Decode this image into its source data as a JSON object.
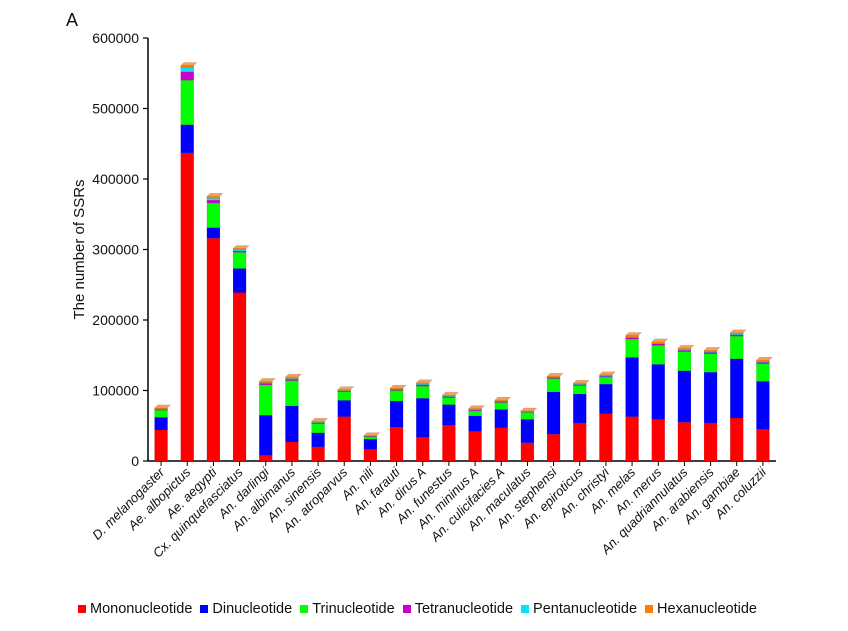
{
  "panel_label": "A",
  "chart_data": {
    "type": "bar",
    "stacked": true,
    "ylabel": "The number of SSRs",
    "xlabel": "",
    "ylim": [
      0,
      600000
    ],
    "yticks": [
      0,
      100000,
      200000,
      300000,
      400000,
      500000,
      600000
    ],
    "grid": false,
    "legend_position": "bottom",
    "categories": [
      "D. melanogaster",
      "Ae. albopictus",
      "Ae. aegypti",
      "Cx. quinquefasciatus",
      "An. darlingi",
      "An. albimanus",
      "An. sinensis",
      "An. atroparvus",
      "An. nili",
      "An. farauti",
      "An. dirus A",
      "An. funestus",
      "An. mininus A",
      "An. culicifacies A",
      "An. maculatus",
      "An. stephensi",
      "An. epiroticus",
      "An. christyi",
      "An. melas",
      "An. merus",
      "An. quadriannulatus",
      "An. arabiensis",
      "An. gambiae",
      "An. coluzzii"
    ],
    "series": [
      {
        "name": "Mononucleotide",
        "color": "#ff0000",
        "values": [
          44000,
          437000,
          316000,
          239000,
          8000,
          27000,
          20000,
          63000,
          17000,
          48000,
          34000,
          51000,
          42000,
          47000,
          26000,
          38000,
          54000,
          67000,
          63000,
          59000,
          55000,
          54000,
          61000,
          45000
        ]
      },
      {
        "name": "Dinucleotide",
        "color": "#0000ff",
        "values": [
          18000,
          40000,
          15000,
          34000,
          57000,
          51000,
          20000,
          23000,
          14000,
          37000,
          55000,
          29000,
          22000,
          26000,
          33000,
          60000,
          41000,
          42000,
          84000,
          78000,
          73000,
          72000,
          84000,
          68000
        ]
      },
      {
        "name": "Trinucleotide",
        "color": "#00ff00",
        "values": [
          10000,
          63000,
          35000,
          23000,
          43000,
          36000,
          13000,
          12000,
          3000,
          15000,
          17000,
          10000,
          7000,
          10000,
          10000,
          19000,
          12000,
          10000,
          26000,
          27000,
          27000,
          26000,
          32000,
          25000
        ]
      },
      {
        "name": "Tetranucleotide",
        "color": "#cc00cc",
        "values": [
          1000,
          12000,
          4000,
          2000,
          2000,
          2000,
          1000,
          1000,
          500,
          1000,
          2000,
          1000,
          1000,
          1000,
          500,
          1000,
          1000,
          1000,
          2000,
          2000,
          2000,
          2000,
          2000,
          2000
        ]
      },
      {
        "name": "Pentanucleotide",
        "color": "#00e5ff",
        "values": [
          800,
          6000,
          2500,
          1500,
          1000,
          1000,
          800,
          800,
          500,
          800,
          1000,
          800,
          800,
          800,
          500,
          800,
          800,
          800,
          1000,
          1000,
          1000,
          1000,
          1000,
          1000
        ]
      },
      {
        "name": "Hexanucleotide",
        "color": "#ff7f00",
        "values": [
          1500,
          3000,
          3000,
          2000,
          2000,
          2000,
          1500,
          1500,
          1000,
          1500,
          2000,
          1500,
          1500,
          1500,
          1000,
          1500,
          1500,
          1500,
          2000,
          2000,
          2000,
          2000,
          2000,
          2000
        ]
      }
    ]
  }
}
